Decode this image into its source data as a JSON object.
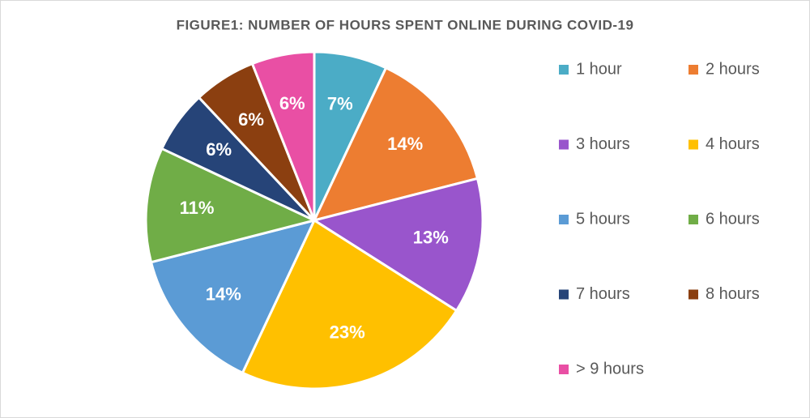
{
  "chart_data": {
    "type": "pie",
    "title": "FIGURE1: NUMBER OF HOURS SPENT ONLINE DURING COVID-19",
    "categories": [
      "1 hour",
      "2 hours",
      "3 hours",
      "4 hours",
      "5 hours",
      "6 hours",
      "7 hours",
      "8 hours",
      "> 9 hours"
    ],
    "values": [
      7,
      14,
      13,
      23,
      14,
      11,
      6,
      6,
      6
    ],
    "value_labels": [
      "7%",
      "14%",
      "13%",
      "23%",
      "14%",
      "11%",
      "6%",
      "6%",
      "6%"
    ],
    "colors": [
      "#4bacc6",
      "#ed7d31",
      "#9955cc",
      "#ffc000",
      "#5b9bd5",
      "#70ad47",
      "#264478",
      "#8b3f10",
      "#e94fa4"
    ],
    "legend": "right"
  }
}
